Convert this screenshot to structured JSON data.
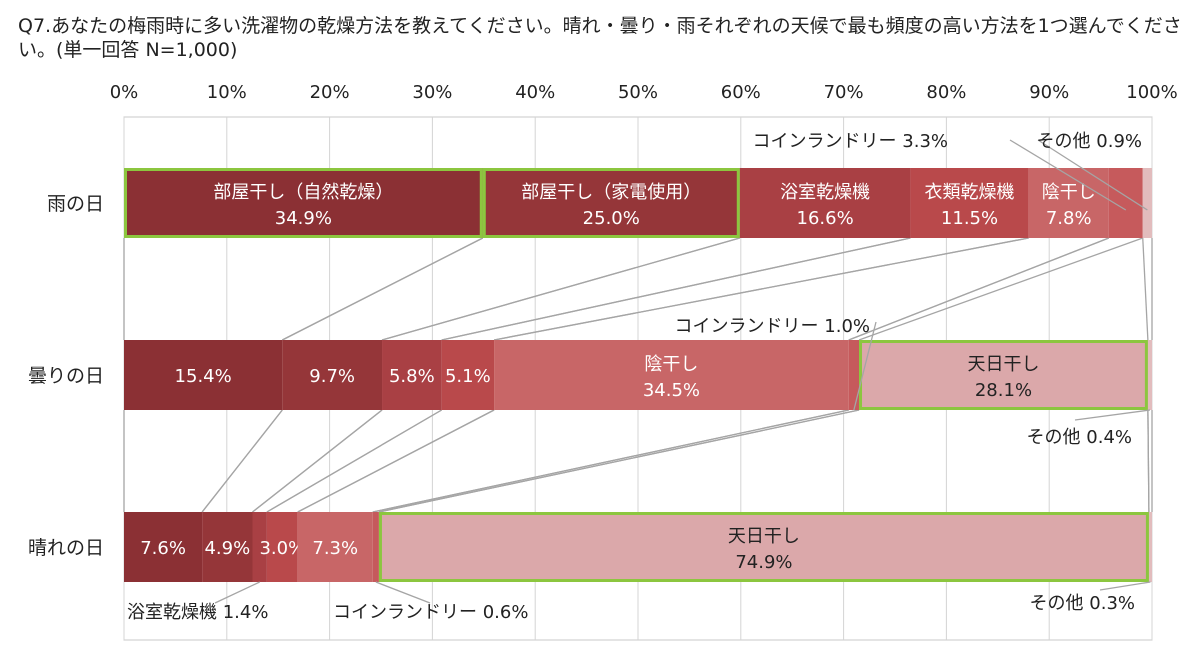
{
  "title": "Q7.あなたの梅雨時に多い洗濯物の乾燥方法を教えてください。晴れ・曇り・雨それぞれの天候で最も頻度の高い方法を1つ選んでください。(単一回答 N=1,000)",
  "chart_data": {
    "type": "stacked-bar-100",
    "orientation": "horizontal",
    "xlim": [
      0,
      100
    ],
    "x_ticks": [
      "0%",
      "10%",
      "20%",
      "30%",
      "40%",
      "50%",
      "60%",
      "70%",
      "80%",
      "90%",
      "100%"
    ],
    "grid": true,
    "legend": "none",
    "categories": [
      "部屋干し（自然乾燥）",
      "部屋干し（家電使用）",
      "浴室乾燥機",
      "衣類乾燥機",
      "コインランドリー",
      "陰干し",
      "天日干し",
      "その他"
    ],
    "colors": [
      "#8b3034",
      "#953639",
      "#a94044",
      "#b9494b",
      "#c65a5c",
      "#c86667",
      "#dba8aa",
      "#e2bcbd"
    ],
    "bars": [
      {
        "label": "雨の日",
        "segments": [
          {
            "name": "部屋干し（自然乾燥）",
            "value": 34.9,
            "label": "部屋干し（自然乾燥）",
            "value_label": "34.9%",
            "highlight": true
          },
          {
            "name": "部屋干し（家電使用）",
            "value": 25.0,
            "label": "部屋干し（家電使用）",
            "value_label": "25.0%",
            "highlight": true
          },
          {
            "name": "浴室乾燥機",
            "value": 16.6,
            "label": "浴室乾燥機",
            "value_label": "16.6%"
          },
          {
            "name": "衣類乾燥機",
            "value": 11.5,
            "label": "衣類乾燥機",
            "value_label": "11.5%"
          },
          {
            "name": "陰干し",
            "value": 7.8,
            "label": "陰干し",
            "value_label": "7.8%"
          },
          {
            "name": "コインランドリー",
            "value": 3.3
          },
          {
            "name": "その他",
            "value": 0.9
          }
        ]
      },
      {
        "label": "曇りの日",
        "segments": [
          {
            "name": "部屋干し（自然乾燥）",
            "value": 15.4,
            "value_label": "15.4%"
          },
          {
            "name": "部屋干し（家電使用）",
            "value": 9.7,
            "value_label": "9.7%"
          },
          {
            "name": "浴室乾燥機",
            "value": 5.8,
            "value_label": "5.8%"
          },
          {
            "name": "衣類乾燥機",
            "value": 5.1,
            "value_label": "5.1%"
          },
          {
            "name": "陰干し",
            "value": 34.5,
            "label": "陰干し",
            "value_label": "34.5%"
          },
          {
            "name": "コインランドリー",
            "value": 1.0
          },
          {
            "name": "天日干し",
            "value": 28.1,
            "label": "天日干し",
            "value_label": "28.1%",
            "highlight": true
          },
          {
            "name": "その他",
            "value": 0.4
          }
        ]
      },
      {
        "label": "晴れの日",
        "segments": [
          {
            "name": "部屋干し（自然乾燥）",
            "value": 7.6,
            "value_label": "7.6%"
          },
          {
            "name": "部屋干し（家電使用）",
            "value": 4.9,
            "value_label": "4.9%"
          },
          {
            "name": "浴室乾燥機",
            "value": 1.4
          },
          {
            "name": "衣類乾燥機",
            "value": 3.0,
            "value_label": "3.0%"
          },
          {
            "name": "陰干し",
            "value": 7.3,
            "value_label": "7.3%"
          },
          {
            "name": "コインランドリー",
            "value": 0.6
          },
          {
            "name": "天日干し",
            "value": 74.9,
            "label": "天日干し",
            "value_label": "74.9%",
            "highlight": true
          },
          {
            "name": "その他",
            "value": 0.3
          }
        ]
      }
    ],
    "annotations": [
      {
        "text": "コインランドリー 3.3%",
        "bar": 0,
        "segment": 5
      },
      {
        "text": "その他 0.9%",
        "bar": 0,
        "segment": 6
      },
      {
        "text": "コインランドリー 1.0%",
        "bar": 1,
        "segment": 5
      },
      {
        "text": "その他 0.4%",
        "bar": 1,
        "segment": 7
      },
      {
        "text": "浴室乾燥機 1.4%",
        "bar": 2,
        "segment": 2
      },
      {
        "text": "コインランドリー 0.6%",
        "bar": 2,
        "segment": 5
      },
      {
        "text": "その他 0.3%",
        "bar": 2,
        "segment": 7
      }
    ]
  }
}
